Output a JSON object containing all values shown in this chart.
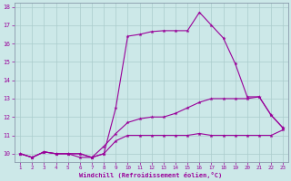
{
  "xlabel": "Windchill (Refroidissement éolien,°C)",
  "background_color": "#cce8e8",
  "grid_color": "#aacccc",
  "line_color": "#990099",
  "xlim_min": 0.5,
  "xlim_max": 23.4,
  "ylim_min": 9.55,
  "ylim_max": 18.2,
  "xticks": [
    1,
    2,
    3,
    4,
    5,
    6,
    7,
    8,
    9,
    10,
    11,
    12,
    13,
    14,
    15,
    16,
    17,
    18,
    19,
    20,
    21,
    22,
    23
  ],
  "yticks": [
    10,
    11,
    12,
    13,
    14,
    15,
    16,
    17,
    18
  ],
  "line1_x": [
    1,
    2,
    3,
    4,
    5,
    6,
    7,
    8,
    9,
    10,
    11,
    12,
    13,
    14,
    15,
    16,
    17,
    18,
    19,
    20,
    21,
    22,
    23
  ],
  "line1_y": [
    10.0,
    9.8,
    10.1,
    10.0,
    10.0,
    10.0,
    9.8,
    10.0,
    10.7,
    11.0,
    11.0,
    11.0,
    11.0,
    11.0,
    11.0,
    11.1,
    11.0,
    11.0,
    11.0,
    11.0,
    11.0,
    11.0,
    11.3
  ],
  "line2_x": [
    1,
    2,
    3,
    4,
    5,
    6,
    7,
    8,
    9,
    10,
    11,
    12,
    13,
    14,
    15,
    16,
    17,
    18,
    19,
    20,
    21,
    22,
    23
  ],
  "line2_y": [
    10.0,
    9.8,
    10.1,
    10.0,
    10.0,
    10.0,
    9.8,
    10.4,
    11.1,
    11.7,
    11.9,
    12.0,
    12.0,
    12.2,
    12.5,
    12.8,
    13.0,
    13.0,
    13.0,
    13.0,
    13.1,
    12.1,
    11.4
  ],
  "line3_x": [
    1,
    2,
    3,
    4,
    5,
    6,
    7,
    8,
    9,
    10,
    11,
    12,
    13,
    14,
    15,
    16,
    17,
    18,
    19,
    20,
    21,
    22,
    23
  ],
  "line3_y": [
    10.0,
    9.8,
    10.1,
    10.0,
    10.0,
    9.8,
    9.8,
    10.0,
    12.5,
    16.4,
    16.5,
    16.65,
    16.7,
    16.7,
    16.7,
    17.7,
    17.0,
    16.3,
    14.9,
    13.1,
    13.1,
    12.1,
    11.4
  ],
  "figsize": [
    3.2,
    2.0
  ],
  "dpi": 100
}
